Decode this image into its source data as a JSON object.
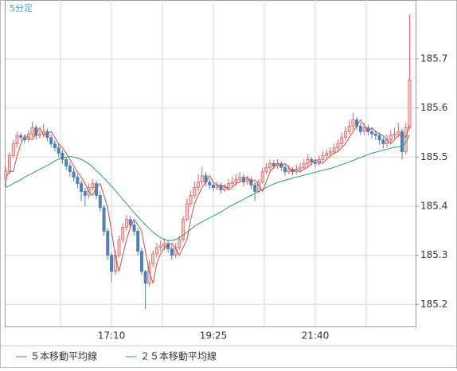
{
  "chart_data": {
    "type": "candlestick",
    "title": "5分足",
    "categories": [
      null,
      null,
      null,
      null,
      null,
      null,
      null,
      null,
      null,
      null,
      null,
      null,
      null,
      null,
      null,
      null,
      null,
      null,
      null,
      null,
      null,
      null,
      null,
      null,
      null,
      null,
      null,
      null,
      "17:10",
      null,
      null,
      null,
      null,
      null,
      null,
      null,
      null,
      null,
      null,
      null,
      null,
      null,
      null,
      null,
      null,
      null,
      null,
      null,
      null,
      null,
      null,
      null,
      null,
      null,
      null,
      "19:25",
      null,
      null,
      null,
      null,
      null,
      null,
      null,
      null,
      null,
      null,
      null,
      null,
      null,
      null,
      null,
      null,
      null,
      null,
      null,
      null,
      null,
      null,
      null,
      null,
      null,
      null,
      "21:40",
      null,
      null,
      null,
      null,
      null,
      null,
      null,
      null,
      null,
      null,
      null,
      null,
      null,
      null,
      null,
      null,
      null,
      null,
      null,
      null,
      null,
      null,
      null,
      null,
      null
    ],
    "open": [
      185.455,
      185.471,
      185.503,
      185.527,
      185.544,
      185.54,
      185.535,
      185.547,
      185.56,
      185.544,
      185.547,
      185.552,
      185.54,
      185.527,
      185.519,
      185.508,
      185.495,
      185.482,
      185.47,
      185.459,
      185.446,
      185.43,
      185.422,
      185.438,
      185.446,
      185.422,
      185.397,
      185.349,
      185.3,
      185.267,
      185.3,
      185.332,
      185.357,
      185.373,
      185.362,
      185.349,
      185.308,
      185.267,
      185.243,
      185.283,
      185.303,
      185.316,
      185.319,
      185.324,
      185.313,
      185.3,
      185.316,
      185.332,
      185.373,
      185.405,
      185.422,
      185.438,
      185.449,
      185.462,
      185.449,
      185.443,
      185.438,
      185.443,
      185.433,
      185.438,
      185.446,
      185.449,
      185.454,
      185.459,
      185.449,
      185.454,
      185.443,
      185.43,
      185.449,
      185.47,
      185.479,
      185.487,
      185.482,
      185.487,
      185.479,
      185.47,
      185.475,
      185.47,
      185.475,
      185.479,
      185.487,
      185.495,
      185.49,
      185.487,
      185.495,
      185.503,
      185.508,
      185.511,
      185.519,
      185.527,
      185.54,
      185.552,
      185.563,
      185.576,
      185.563,
      185.552,
      185.56,
      185.552,
      185.547,
      185.544,
      185.535,
      185.527,
      185.535,
      185.544,
      185.547,
      185.552,
      185.511,
      185.56
    ],
    "high": [
      185.48,
      185.51,
      185.535,
      185.552,
      185.55,
      185.546,
      185.555,
      185.572,
      185.566,
      185.555,
      185.568,
      185.558,
      185.546,
      185.534,
      185.526,
      185.514,
      185.5,
      185.49,
      185.478,
      185.466,
      185.452,
      185.438,
      185.446,
      185.455,
      185.452,
      185.43,
      185.402,
      185.355,
      185.305,
      185.31,
      185.34,
      185.365,
      185.382,
      185.38,
      185.37,
      185.355,
      185.315,
      185.27,
      185.29,
      185.31,
      185.325,
      185.33,
      185.335,
      185.33,
      185.32,
      185.325,
      185.34,
      185.38,
      185.415,
      185.432,
      185.45,
      185.465,
      185.48,
      185.47,
      185.455,
      185.45,
      185.45,
      185.448,
      185.445,
      185.455,
      185.46,
      185.465,
      185.47,
      185.465,
      185.462,
      185.46,
      185.448,
      185.455,
      185.478,
      185.488,
      185.495,
      185.494,
      185.496,
      185.492,
      185.485,
      185.484,
      185.48,
      185.485,
      185.488,
      185.495,
      185.505,
      185.5,
      185.497,
      185.503,
      185.512,
      185.516,
      185.52,
      185.528,
      185.536,
      185.55,
      185.562,
      185.575,
      185.59,
      185.582,
      185.57,
      185.57,
      185.566,
      185.56,
      185.555,
      185.55,
      185.542,
      185.545,
      185.555,
      185.56,
      185.57,
      185.558,
      185.57,
      185.79
    ],
    "low": [
      185.44,
      185.465,
      185.498,
      185.52,
      185.533,
      185.528,
      185.53,
      185.54,
      185.536,
      185.538,
      185.54,
      185.532,
      185.52,
      185.512,
      185.5,
      185.486,
      185.474,
      185.46,
      185.45,
      185.436,
      185.41,
      185.4,
      185.415,
      185.43,
      185.414,
      185.388,
      185.34,
      185.29,
      185.245,
      185.26,
      185.295,
      185.325,
      185.35,
      185.355,
      185.34,
      185.3,
      185.26,
      185.19,
      185.235,
      185.275,
      185.295,
      185.308,
      185.31,
      185.305,
      185.29,
      185.294,
      185.31,
      185.328,
      185.368,
      185.398,
      185.415,
      185.43,
      185.442,
      185.44,
      185.435,
      185.43,
      185.432,
      185.425,
      185.428,
      185.432,
      185.44,
      185.442,
      185.448,
      185.44,
      185.443,
      185.435,
      185.41,
      185.425,
      185.445,
      185.465,
      185.472,
      185.476,
      185.476,
      185.472,
      185.462,
      185.465,
      185.463,
      185.465,
      185.468,
      185.474,
      185.48,
      185.483,
      185.48,
      185.482,
      185.49,
      185.497,
      185.5,
      185.505,
      185.512,
      185.52,
      185.534,
      185.546,
      185.555,
      185.555,
      185.545,
      185.545,
      185.544,
      185.538,
      185.535,
      185.525,
      185.518,
      185.52,
      185.528,
      185.537,
      185.54,
      185.495,
      185.505,
      185.555
    ],
    "close": [
      185.471,
      185.503,
      185.527,
      185.544,
      185.54,
      185.535,
      185.547,
      185.56,
      185.544,
      185.547,
      185.552,
      185.54,
      185.527,
      185.519,
      185.508,
      185.495,
      185.482,
      185.47,
      185.459,
      185.446,
      185.43,
      185.422,
      185.438,
      185.446,
      185.422,
      185.397,
      185.349,
      185.3,
      185.267,
      185.3,
      185.332,
      185.357,
      185.373,
      185.362,
      185.349,
      185.308,
      185.267,
      185.243,
      185.283,
      185.303,
      185.316,
      185.319,
      185.324,
      185.313,
      185.3,
      185.316,
      185.332,
      185.373,
      185.405,
      185.422,
      185.438,
      185.449,
      185.462,
      185.449,
      185.443,
      185.438,
      185.443,
      185.433,
      185.438,
      185.446,
      185.449,
      185.454,
      185.459,
      185.449,
      185.454,
      185.443,
      185.43,
      185.449,
      185.47,
      185.479,
      185.487,
      185.482,
      185.487,
      185.479,
      185.47,
      185.475,
      185.47,
      185.475,
      185.479,
      185.487,
      185.495,
      185.49,
      185.487,
      185.495,
      185.503,
      185.508,
      185.511,
      185.519,
      185.527,
      185.54,
      185.552,
      185.563,
      185.576,
      185.563,
      185.552,
      185.56,
      185.552,
      185.547,
      185.544,
      185.535,
      185.527,
      185.535,
      185.544,
      185.547,
      185.552,
      185.511,
      185.56,
      185.657
    ],
    "up_color": "#e06666",
    "down_color": "#4f81b3",
    "series": [
      {
        "name": "５本移動平均線",
        "color": "#c0504d",
        "values": [
          185.46,
          185.47,
          185.471,
          185.503,
          185.527,
          185.544,
          185.54,
          185.535,
          185.547,
          185.56,
          185.544,
          185.547,
          185.552,
          185.54,
          185.527,
          185.519,
          185.508,
          185.495,
          185.482,
          185.47,
          185.459,
          185.446,
          185.43,
          185.422,
          185.438,
          185.446,
          185.422,
          185.397,
          185.349,
          185.3,
          185.267,
          185.3,
          185.332,
          185.357,
          185.373,
          185.362,
          185.349,
          185.308,
          185.267,
          185.243,
          185.283,
          185.303,
          185.316,
          185.319,
          185.324,
          185.313,
          185.3,
          185.316,
          185.332,
          185.373,
          185.405,
          185.422,
          185.438,
          185.449,
          185.462,
          185.449,
          185.443,
          185.438,
          185.443,
          185.433,
          185.438,
          185.446,
          185.449,
          185.454,
          185.459,
          185.449,
          185.454,
          185.443,
          185.43,
          185.449,
          185.47,
          185.479,
          185.487,
          185.482,
          185.487,
          185.479,
          185.47,
          185.475,
          185.47,
          185.475,
          185.479,
          185.487,
          185.495,
          185.49,
          185.487,
          185.495,
          185.503,
          185.508,
          185.511,
          185.519,
          185.527,
          185.54,
          185.552,
          185.563,
          185.576,
          185.563,
          185.552,
          185.56,
          185.552,
          185.547,
          185.544,
          185.535,
          185.527,
          185.535,
          185.544,
          185.547,
          185.54,
          185.565
        ]
      },
      {
        "name": "２５本移動平均線",
        "color": "#2e9e6b",
        "values": [
          185.438,
          185.442,
          185.446,
          185.45,
          185.454,
          185.459,
          185.463,
          185.467,
          185.471,
          185.475,
          185.479,
          185.483,
          185.487,
          185.492,
          185.496,
          185.5,
          185.5,
          185.501,
          185.5,
          185.498,
          185.495,
          185.491,
          185.486,
          185.48,
          185.472,
          185.465,
          185.457,
          185.449,
          185.441,
          185.432,
          185.423,
          185.414,
          185.405,
          185.396,
          185.387,
          185.378,
          185.37,
          185.362,
          185.354,
          185.347,
          185.341,
          185.336,
          185.332,
          185.33,
          185.33,
          185.332,
          185.336,
          185.341,
          185.347,
          185.353,
          185.359,
          185.364,
          185.368,
          185.372,
          185.376,
          185.38,
          185.384,
          185.388,
          185.393,
          185.398,
          185.402,
          185.406,
          185.41,
          185.414,
          185.418,
          185.422,
          185.426,
          185.43,
          185.434,
          185.438,
          185.442,
          185.445,
          185.448,
          185.451,
          185.453,
          185.455,
          185.457,
          185.459,
          185.461,
          185.463,
          185.465,
          185.467,
          185.469,
          185.471,
          185.473,
          185.475,
          185.477,
          185.479,
          185.482,
          185.485,
          185.487,
          185.49,
          185.493,
          185.496,
          185.499,
          185.502,
          185.505,
          185.508,
          185.51,
          185.512,
          185.514,
          185.516,
          185.518,
          185.52,
          185.521,
          185.522,
          185.53,
          185.545
        ]
      }
    ],
    "ylim": [
      185.155,
      185.82
    ],
    "yticks": [
      185.2,
      185.3,
      185.4,
      185.5,
      185.6,
      185.7
    ],
    "grid": true
  }
}
